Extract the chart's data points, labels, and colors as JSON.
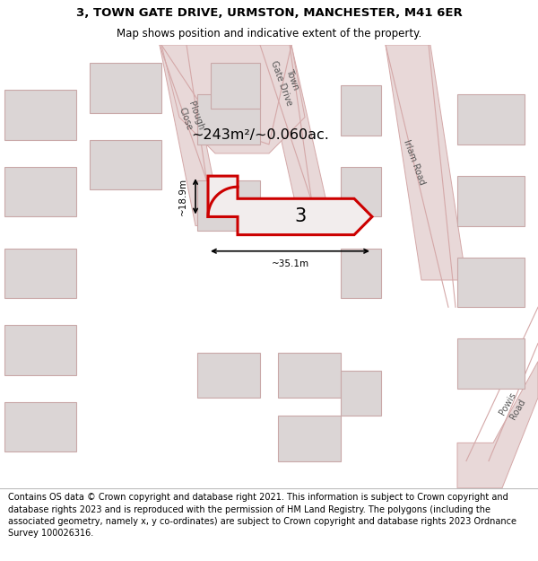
{
  "title_line1": "3, TOWN GATE DRIVE, URMSTON, MANCHESTER, M41 6ER",
  "title_line2": "Map shows position and indicative extent of the property.",
  "footer_text": "Contains OS data © Crown copyright and database right 2021. This information is subject to Crown copyright and database rights 2023 and is reproduced with the permission of HM Land Registry. The polygons (including the associated geometry, namely x, y co-ordinates) are subject to Crown copyright and database rights 2023 Ordnance Survey 100026316.",
  "bg_color": "#f2eded",
  "building_fill": "#dbd5d5",
  "building_edge": "#c9a8a8",
  "road_color": "#d4a8a8",
  "highlight_color": "#cc0000",
  "prop_fill": "#f2eded",
  "area_text": "~243m²/~0.060ac.",
  "dim_v_text": "~18.9m",
  "dim_h_text": "~35.1m",
  "plot_number": "3",
  "title_fontsize": 9.5,
  "subtitle_fontsize": 8.5,
  "footer_fontsize": 7.0
}
